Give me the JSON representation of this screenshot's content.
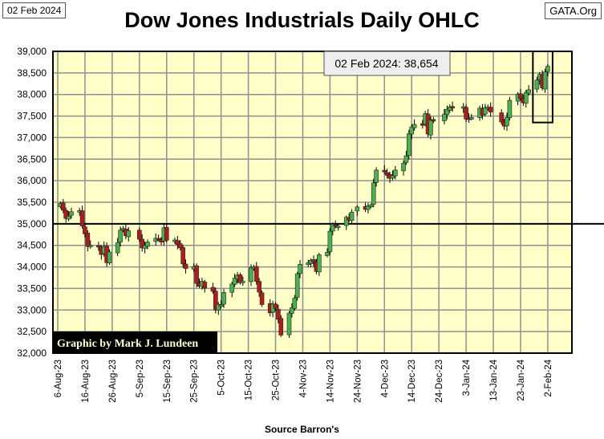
{
  "header": {
    "date_box": "02 Feb 2024",
    "title": "Dow Jones Industrials Daily OHLC",
    "site_box": "GATA.Org"
  },
  "footer": {
    "source": "Source Barron's"
  },
  "credit": "Graphic by Mark J. Lundeen",
  "colors": {
    "up": "#4caf50",
    "down": "#b01c1c",
    "plot_bg": "#ffffc8",
    "grid": "#909090"
  },
  "chart_data": {
    "type": "candlestick",
    "title": "Dow Jones Industrials Daily OHLC",
    "annotation": "02 Feb 2024:  38,654",
    "reference_line": 35000,
    "highlight_range": [
      "2024-01-29",
      "2024-02-02"
    ],
    "ylim": [
      32000,
      39000
    ],
    "yticks": [
      "32,000",
      "32,500",
      "33,000",
      "33,500",
      "34,000",
      "34,500",
      "35,000",
      "35,500",
      "36,000",
      "36,500",
      "37,000",
      "37,500",
      "38,000",
      "38,500",
      "39,000"
    ],
    "xticks": [
      "6-Aug-23",
      "16-Aug-23",
      "26-Aug-23",
      "5-Sep-23",
      "15-Sep-23",
      "25-Sep-23",
      "5-Oct-23",
      "15-Oct-23",
      "25-Oct-23",
      "4-Nov-23",
      "14-Nov-23",
      "24-Nov-23",
      "4-Dec-23",
      "14-Dec-23",
      "24-Dec-23",
      "3-Jan-24",
      "13-Jan-24",
      "23-Jan-24",
      "2-Feb-24"
    ],
    "start_date": "2023-08-06",
    "closes": [
      [
        "2023-08-07",
        35473
      ],
      [
        "2023-08-08",
        35314
      ],
      [
        "2023-08-09",
        35123
      ],
      [
        "2023-08-10",
        35176
      ],
      [
        "2023-08-11",
        35281
      ],
      [
        "2023-08-14",
        35307
      ],
      [
        "2023-08-15",
        34946
      ],
      [
        "2023-08-16",
        34766
      ],
      [
        "2023-08-17",
        34474
      ],
      [
        "2023-08-18",
        34500
      ],
      [
        "2023-08-21",
        34463
      ],
      [
        "2023-08-22",
        34288
      ],
      [
        "2023-08-23",
        34473
      ],
      [
        "2023-08-24",
        34099
      ],
      [
        "2023-08-25",
        34346
      ],
      [
        "2023-08-28",
        34559
      ],
      [
        "2023-08-29",
        34852
      ],
      [
        "2023-08-30",
        34890
      ],
      [
        "2023-08-31",
        34722
      ],
      [
        "2023-09-01",
        34838
      ],
      [
        "2023-09-05",
        34642
      ],
      [
        "2023-09-06",
        34443
      ],
      [
        "2023-09-07",
        34500
      ],
      [
        "2023-09-08",
        34577
      ],
      [
        "2023-09-11",
        34663
      ],
      [
        "2023-09-12",
        34646
      ],
      [
        "2023-09-13",
        34576
      ],
      [
        "2023-09-14",
        34907
      ],
      [
        "2023-09-15",
        34618
      ],
      [
        "2023-09-18",
        34625
      ],
      [
        "2023-09-19",
        34518
      ],
      [
        "2023-09-20",
        34441
      ],
      [
        "2023-09-21",
        34070
      ],
      [
        "2023-09-22",
        33964
      ],
      [
        "2023-09-25",
        34007
      ],
      [
        "2023-09-26",
        33618
      ],
      [
        "2023-09-27",
        33551
      ],
      [
        "2023-09-28",
        33667
      ],
      [
        "2023-09-29",
        33508
      ],
      [
        "2023-10-02",
        33433
      ],
      [
        "2023-10-03",
        33002
      ],
      [
        "2023-10-04",
        33130
      ],
      [
        "2023-10-05",
        33120
      ],
      [
        "2023-10-06",
        33408
      ],
      [
        "2023-10-09",
        33605
      ],
      [
        "2023-10-10",
        33740
      ],
      [
        "2023-10-11",
        33805
      ],
      [
        "2023-10-12",
        33632
      ],
      [
        "2023-10-13",
        33671
      ],
      [
        "2023-10-16",
        33985
      ],
      [
        "2023-10-17",
        33998
      ],
      [
        "2023-10-18",
        33666
      ],
      [
        "2023-10-19",
        33415
      ],
      [
        "2023-10-20",
        33127
      ],
      [
        "2023-10-23",
        32937
      ],
      [
        "2023-10-24",
        33141
      ],
      [
        "2023-10-25",
        33036
      ],
      [
        "2023-10-26",
        32785
      ],
      [
        "2023-10-27",
        32418
      ],
      [
        "2023-10-30",
        32929
      ],
      [
        "2023-10-31",
        33053
      ],
      [
        "2023-11-01",
        33275
      ],
      [
        "2023-11-02",
        33840
      ],
      [
        "2023-11-03",
        34061
      ],
      [
        "2023-11-06",
        34096
      ],
      [
        "2023-11-07",
        34153
      ],
      [
        "2023-11-08",
        34112
      ],
      [
        "2023-11-09",
        33892
      ],
      [
        "2023-11-10",
        34283
      ],
      [
        "2023-11-13",
        34338
      ],
      [
        "2023-11-14",
        34828
      ],
      [
        "2023-11-15",
        34992
      ],
      [
        "2023-11-16",
        34946
      ],
      [
        "2023-11-17",
        34947
      ],
      [
        "2023-11-20",
        35151
      ],
      [
        "2023-11-21",
        35088
      ],
      [
        "2023-11-22",
        35273
      ],
      [
        "2023-11-24",
        35390
      ],
      [
        "2023-11-27",
        35334
      ],
      [
        "2023-11-28",
        35417
      ],
      [
        "2023-11-29",
        35430
      ],
      [
        "2023-11-30",
        35951
      ],
      [
        "2023-12-01",
        36246
      ],
      [
        "2023-12-04",
        36204
      ],
      [
        "2023-12-05",
        36125
      ],
      [
        "2023-12-06",
        36055
      ],
      [
        "2023-12-07",
        36118
      ],
      [
        "2023-12-08",
        36248
      ],
      [
        "2023-12-11",
        36405
      ],
      [
        "2023-12-12",
        36578
      ],
      [
        "2023-12-13",
        37090
      ],
      [
        "2023-12-14",
        37248
      ],
      [
        "2023-12-15",
        37306
      ],
      [
        "2023-12-18",
        37306
      ],
      [
        "2023-12-19",
        37558
      ],
      [
        "2023-12-20",
        37083
      ],
      [
        "2023-12-21",
        37405
      ],
      [
        "2023-12-22",
        37386
      ],
      [
        "2023-12-26",
        37545
      ],
      [
        "2023-12-27",
        37657
      ],
      [
        "2023-12-28",
        37710
      ],
      [
        "2023-12-29",
        37690
      ],
      [
        "2024-01-02",
        37715
      ],
      [
        "2024-01-03",
        37430
      ],
      [
        "2024-01-04",
        37440
      ],
      [
        "2024-01-05",
        37466
      ],
      [
        "2024-01-08",
        37683
      ],
      [
        "2024-01-09",
        37525
      ],
      [
        "2024-01-10",
        37696
      ],
      [
        "2024-01-11",
        37711
      ],
      [
        "2024-01-12",
        37593
      ],
      [
        "2024-01-16",
        37361
      ],
      [
        "2024-01-17",
        37266
      ],
      [
        "2024-01-18",
        37469
      ],
      [
        "2024-01-19",
        37864
      ],
      [
        "2024-01-22",
        38001
      ],
      [
        "2024-01-23",
        37906
      ],
      [
        "2024-01-24",
        37806
      ],
      [
        "2024-01-25",
        38050
      ],
      [
        "2024-01-26",
        38109
      ],
      [
        "2024-01-29",
        38333
      ],
      [
        "2024-01-30",
        38467
      ],
      [
        "2024-01-31",
        38150
      ],
      [
        "2024-02-01",
        38520
      ],
      [
        "2024-02-02",
        38654
      ]
    ]
  }
}
